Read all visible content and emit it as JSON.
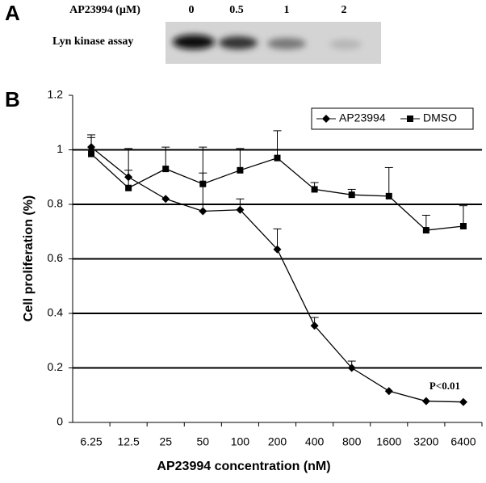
{
  "panel_a": {
    "label": "A",
    "header": "AP23994 (µM)",
    "lanes": [
      "0",
      "0.5",
      "1",
      "2"
    ],
    "row_label": "Lyn kinase assay"
  },
  "chart_data": {
    "type": "line",
    "panel_label": "B",
    "x_label": "AP23994 concentration (nM)",
    "y_label": "Cell proliferation (%)",
    "categories": [
      "6.25",
      "12.5",
      "25",
      "50",
      "100",
      "200",
      "400",
      "800",
      "1600",
      "3200",
      "6400"
    ],
    "series": [
      {
        "name": "AP23994",
        "color": "#000000",
        "marker": "diamond",
        "values": [
          1.01,
          0.9,
          0.82,
          0.775,
          0.78,
          0.635,
          0.355,
          0.2,
          0.115,
          0.078,
          0.075
        ],
        "errors": [
          0.045,
          0.025,
          null,
          0.14,
          0.04,
          0.075,
          0.03,
          0.025,
          null,
          null,
          null
        ]
      },
      {
        "name": "DMSO",
        "color": "#000000",
        "marker": "square",
        "values": [
          0.985,
          0.86,
          0.93,
          0.875,
          0.925,
          0.97,
          0.855,
          0.835,
          0.83,
          0.705,
          0.72
        ],
        "errors": [
          0.06,
          0.145,
          0.08,
          0.135,
          0.08,
          0.1,
          0.025,
          0.02,
          0.105,
          0.055,
          0.075
        ]
      }
    ],
    "ylim": [
      0,
      1.2
    ],
    "yticks": [
      0,
      0.2,
      0.4,
      0.6,
      0.8,
      1,
      1.2
    ],
    "grid": true,
    "legend": "upper right",
    "annotation": "P<0.01"
  }
}
